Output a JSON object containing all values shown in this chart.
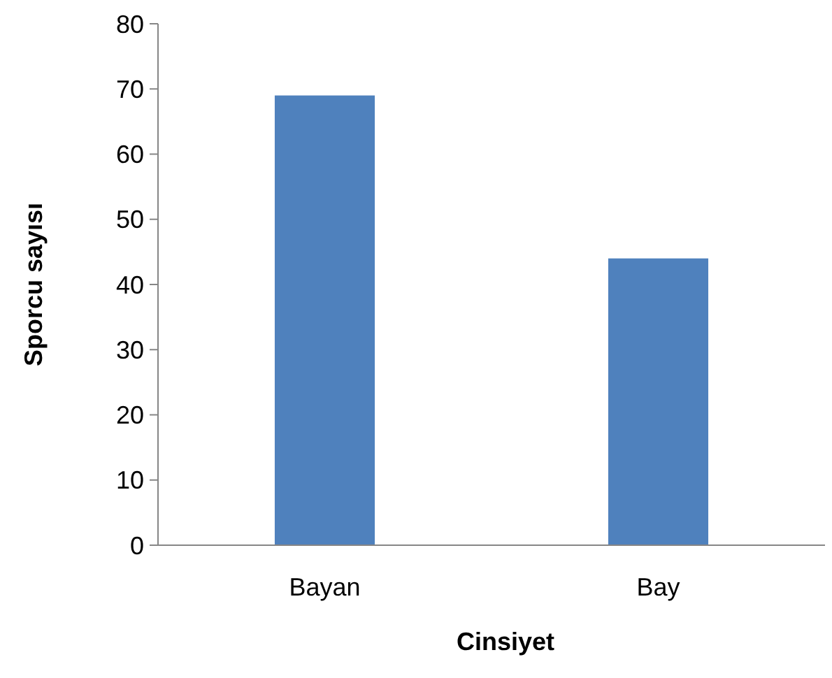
{
  "chart_data": {
    "type": "bar",
    "xlabel": "Cinsiyet",
    "ylabel": "Sporcu sayısı",
    "categories": [
      "Bayan",
      "Bay"
    ],
    "values": [
      69,
      44
    ],
    "color": "#4f81bd",
    "ylim": [
      0,
      80
    ],
    "yticks": [
      0,
      10,
      20,
      30,
      40,
      50,
      60,
      70,
      80
    ],
    "grid": false
  }
}
